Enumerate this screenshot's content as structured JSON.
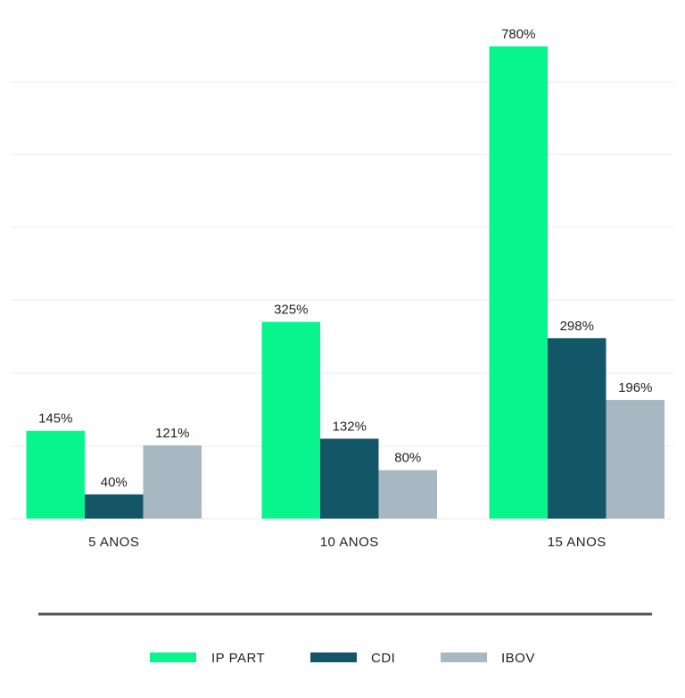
{
  "chart_data": {
    "type": "bar",
    "categories": [
      "5 ANOS",
      "10 ANOS",
      "15 ANOS"
    ],
    "series": [
      {
        "name": "IP PART",
        "values": [
          145,
          325,
          780
        ],
        "labels": [
          "145%",
          "325%",
          "780%"
        ],
        "color": "#08f58e"
      },
      {
        "name": "CDI",
        "values": [
          40,
          132,
          298
        ],
        "labels": [
          "40%",
          "132%",
          "298%"
        ],
        "color": "#135668"
      },
      {
        "name": "IBOV",
        "values": [
          121,
          80,
          196
        ],
        "labels": [
          "121%",
          "80%",
          "196%"
        ],
        "color": "#a7b8c2"
      }
    ],
    "ylim": [
      0,
      780
    ],
    "grid": true,
    "legend": "bottom",
    "gridline_color": "#ebebeb",
    "divider_color": "#555555"
  }
}
